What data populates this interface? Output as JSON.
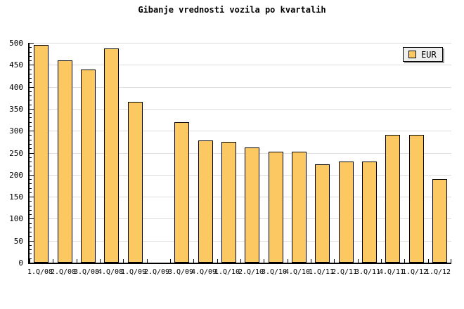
{
  "title": "Gibanje vrednosti vozila po kvartalih",
  "legend": {
    "label": "EUR"
  },
  "colors": {
    "background": "#FFFFFF",
    "bar_fill": "#FBC861",
    "bar_border": "#000000",
    "gridline": "#DEDEDE",
    "axis": "#000000",
    "text": "#000000",
    "legend_bg": "#EFEFEF",
    "legend_border": "#000000",
    "legend_shadow": "#9E9E9E"
  },
  "y_axis": {
    "tick_labels": [
      "0",
      "50",
      "100",
      "150",
      "200",
      "250",
      "300",
      "350",
      "400",
      "450",
      "500"
    ]
  },
  "chart_data": {
    "type": "bar",
    "title": "Gibanje vrednosti vozila po kvartalih",
    "categories": [
      "1.Q/08",
      "2.Q/08",
      "3.Q/08",
      "4.Q/08",
      "1.Q/09",
      "2.Q/09",
      "3.Q/09",
      "4.Q/09",
      "1.Q/10",
      "2.Q/10",
      "3.Q/10",
      "4.Q/10",
      "1.Q/11",
      "2.Q/11",
      "3.Q/11",
      "4.Q/11",
      "1.Q/12",
      "1.Q/12"
    ],
    "series": [
      {
        "name": "EUR",
        "values": [
          495,
          460,
          440,
          487,
          366,
          null,
          320,
          278,
          274,
          262,
          252,
          253,
          224,
          230,
          230,
          290,
          290,
          190
        ]
      }
    ],
    "xlabel": "",
    "ylabel": "",
    "ylim": [
      0,
      500
    ],
    "y_tick_step": 50,
    "y_minor_tick_step": 10,
    "grid": true,
    "legend_position": "top-right"
  }
}
